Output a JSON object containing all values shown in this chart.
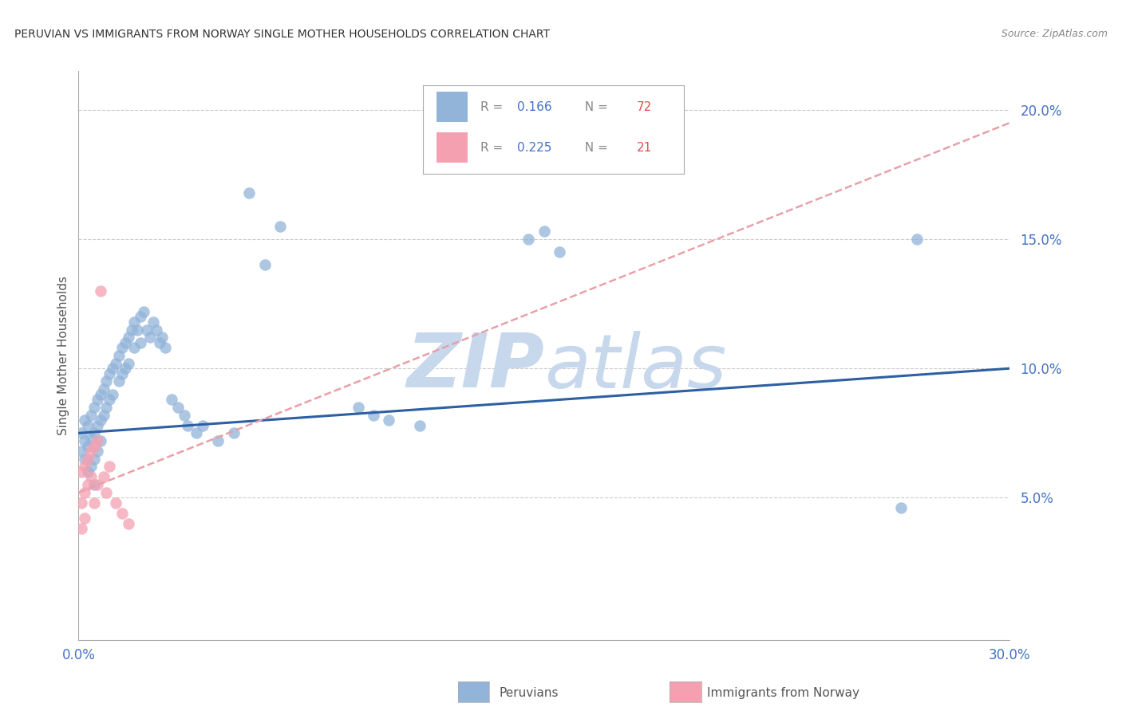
{
  "title": "PERUVIAN VS IMMIGRANTS FROM NORWAY SINGLE MOTHER HOUSEHOLDS CORRELATION CHART",
  "source": "Source: ZipAtlas.com",
  "ylabel": "Single Mother Households",
  "ytick_values": [
    0.05,
    0.1,
    0.15,
    0.2
  ],
  "xlim": [
    0.0,
    0.3
  ],
  "ylim": [
    -0.005,
    0.215
  ],
  "legend_blue_r": "0.166",
  "legend_blue_n": "72",
  "legend_pink_r": "0.225",
  "legend_pink_n": "21",
  "blue_scatter_color": "#92B4D9",
  "pink_scatter_color": "#F4A0B0",
  "trendline_blue_color": "#2E5FA3",
  "trendline_pink_color": "#E8A0A8",
  "grid_color": "#CCCCCC",
  "watermark_color": "#C8D8EC",
  "peru_x": [
    0.001,
    0.001,
    0.002,
    0.002,
    0.002,
    0.003,
    0.003,
    0.003,
    0.004,
    0.004,
    0.004,
    0.005,
    0.005,
    0.005,
    0.005,
    0.006,
    0.006,
    0.006,
    0.007,
    0.007,
    0.007,
    0.008,
    0.008,
    0.009,
    0.009,
    0.01,
    0.01,
    0.011,
    0.011,
    0.012,
    0.013,
    0.013,
    0.014,
    0.014,
    0.015,
    0.015,
    0.016,
    0.016,
    0.017,
    0.018,
    0.018,
    0.019,
    0.02,
    0.02,
    0.021,
    0.022,
    0.023,
    0.024,
    0.025,
    0.026,
    0.027,
    0.028,
    0.03,
    0.032,
    0.034,
    0.035,
    0.038,
    0.04,
    0.045,
    0.05,
    0.055,
    0.06,
    0.065,
    0.09,
    0.095,
    0.1,
    0.11,
    0.145,
    0.15,
    0.155,
    0.265,
    0.27
  ],
  "peru_y": [
    0.075,
    0.068,
    0.08,
    0.072,
    0.065,
    0.078,
    0.07,
    0.06,
    0.082,
    0.073,
    0.062,
    0.085,
    0.075,
    0.065,
    0.055,
    0.088,
    0.078,
    0.068,
    0.09,
    0.08,
    0.072,
    0.092,
    0.082,
    0.095,
    0.085,
    0.098,
    0.088,
    0.1,
    0.09,
    0.102,
    0.105,
    0.095,
    0.108,
    0.098,
    0.11,
    0.1,
    0.112,
    0.102,
    0.115,
    0.118,
    0.108,
    0.115,
    0.12,
    0.11,
    0.122,
    0.115,
    0.112,
    0.118,
    0.115,
    0.11,
    0.112,
    0.108,
    0.088,
    0.085,
    0.082,
    0.078,
    0.075,
    0.078,
    0.072,
    0.075,
    0.168,
    0.14,
    0.155,
    0.085,
    0.082,
    0.08,
    0.078,
    0.15,
    0.153,
    0.145,
    0.046,
    0.15
  ],
  "norway_x": [
    0.001,
    0.001,
    0.001,
    0.002,
    0.002,
    0.002,
    0.003,
    0.003,
    0.004,
    0.004,
    0.005,
    0.005,
    0.006,
    0.006,
    0.007,
    0.008,
    0.009,
    0.01,
    0.012,
    0.014,
    0.016
  ],
  "norway_y": [
    0.06,
    0.048,
    0.038,
    0.062,
    0.052,
    0.042,
    0.065,
    0.055,
    0.068,
    0.058,
    0.07,
    0.048,
    0.072,
    0.055,
    0.13,
    0.058,
    0.052,
    0.062,
    0.048,
    0.044,
    0.04
  ],
  "blue_trend_x0": 0.0,
  "blue_trend_y0": 0.075,
  "blue_trend_x1": 0.3,
  "blue_trend_y1": 0.1,
  "pink_trend_x0": 0.0,
  "pink_trend_y0": 0.052,
  "pink_trend_x1": 0.3,
  "pink_trend_y1": 0.195
}
